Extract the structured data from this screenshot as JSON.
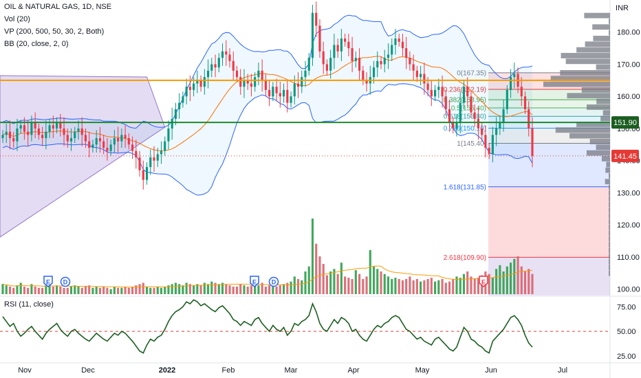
{
  "legend": {
    "symbol": "OIL & NATURAL GAS, 1D, NSE",
    "vol": "Vol (20)",
    "vp": "VP (200, 500, 50, 30, 2, Both)",
    "bb": "BB (20, close, 2, 0)",
    "rsi": "RSI (11, close)"
  },
  "chart_data": {
    "type": "candlestick",
    "currency": "INR",
    "x_ticks": [
      "Nov",
      "Dec",
      "2022",
      "Feb",
      "Mar",
      "Apr",
      "May",
      "Jun",
      "Jul"
    ],
    "y_ticks": [
      100,
      110,
      120,
      130,
      140,
      150,
      160,
      170,
      180
    ],
    "ylim": [
      98,
      190
    ],
    "rsi_ticks": [
      25,
      50,
      75
    ],
    "rsi_ylim": [
      20,
      85
    ],
    "price_labels": [
      {
        "text": "151.90",
        "value": 151.9,
        "color": "#1b5e20"
      },
      {
        "text": "141.45",
        "value": 141.45,
        "color": "#e53935"
      }
    ],
    "horizontal_lines": [
      {
        "value": 165.0,
        "color": "#f59b00"
      },
      {
        "value": 151.9,
        "color": "#1b8a2d"
      }
    ],
    "fib_levels": [
      {
        "label": "0(167.35)",
        "value": 167.35,
        "color": "#787b86"
      },
      {
        "label": "0.236(162.19)",
        "value": 162.19,
        "color": "#e53935"
      },
      {
        "label": "0.382(158.95)",
        "value": 158.95,
        "color": "#43a047"
      },
      {
        "label": "0.5(156.40)",
        "value": 156.4,
        "color": "#4caf50"
      },
      {
        "label": "0.618(153.80)",
        "value": 153.8,
        "color": "#26a69a"
      },
      {
        "label": "0.786(150.10)",
        "value": 150.1,
        "color": "#2196f3"
      },
      {
        "label": "1(145.40)",
        "value": 145.4,
        "color": "#787b86"
      },
      {
        "label": "1.618(131.85)",
        "value": 131.85,
        "color": "#2962ff"
      },
      {
        "label": "2.618(109.90)",
        "value": 109.9,
        "color": "#f23645"
      }
    ],
    "events": [
      {
        "label": "E",
        "month": "Nov"
      },
      {
        "label": "D",
        "month": "Nov"
      },
      {
        "label": "E",
        "month": "Feb"
      },
      {
        "label": "D",
        "month": "Feb"
      },
      {
        "label": "E",
        "month": "May"
      }
    ],
    "close": [
      148,
      149,
      147,
      146,
      150,
      151,
      149,
      148,
      152,
      150,
      148,
      147,
      149,
      151,
      150,
      152,
      150,
      148,
      146,
      147,
      149,
      150,
      148,
      146,
      144,
      145,
      147,
      146,
      144,
      143,
      145,
      147,
      146,
      148,
      147,
      145,
      143,
      141,
      137,
      134,
      138,
      141,
      140,
      142,
      143,
      146,
      150,
      153,
      156,
      158,
      160,
      163,
      162,
      164,
      165,
      163,
      166,
      168,
      170,
      169,
      172,
      174,
      173,
      171,
      168,
      166,
      163,
      165,
      164,
      163,
      166,
      168,
      165,
      162,
      160,
      163,
      161,
      160,
      162,
      158,
      160,
      164,
      163,
      166,
      168,
      172,
      186,
      182,
      174,
      170,
      168,
      172,
      176,
      174,
      178,
      177,
      175,
      171,
      172,
      168,
      165,
      164,
      166,
      169,
      171,
      170,
      172,
      173,
      176,
      178,
      177,
      175,
      172,
      170,
      168,
      166,
      167,
      164,
      162,
      160,
      162,
      163,
      160,
      156,
      152,
      150,
      152,
      158,
      163,
      160,
      155,
      153,
      150,
      148,
      144,
      142,
      148,
      150,
      152,
      156,
      162,
      166,
      167,
      163,
      160,
      156,
      150,
      141.45
    ],
    "volume": [
      8,
      7,
      6,
      5,
      7,
      9,
      6,
      5,
      8,
      6,
      5,
      5,
      7,
      8,
      6,
      7,
      6,
      5,
      5,
      6,
      7,
      6,
      5,
      6,
      7,
      5,
      6,
      5,
      6,
      5,
      4,
      6,
      5,
      5,
      6,
      5,
      6,
      7,
      8,
      9,
      6,
      5,
      5,
      6,
      5,
      6,
      7,
      8,
      9,
      8,
      7,
      9,
      8,
      7,
      8,
      7,
      9,
      8,
      10,
      9,
      8,
      9,
      8,
      7,
      6,
      6,
      8,
      7,
      6,
      7,
      8,
      7,
      9,
      6,
      7,
      8,
      6,
      7,
      8,
      9,
      10,
      14,
      12,
      11,
      18,
      22,
      60,
      40,
      30,
      24,
      15,
      18,
      20,
      16,
      25,
      14,
      13,
      12,
      19,
      16,
      12,
      14,
      35,
      22,
      20,
      18,
      16,
      14,
      12,
      13,
      12,
      11,
      12,
      14,
      11,
      12,
      10,
      11,
      12,
      13,
      10,
      11,
      12,
      9,
      10,
      12,
      14,
      13,
      16,
      18,
      14,
      12,
      13,
      15,
      18,
      16,
      13,
      20,
      23,
      18,
      22,
      25,
      28,
      30,
      22,
      18,
      20,
      16
    ],
    "rsi": [
      65,
      60,
      55,
      58,
      50,
      45,
      48,
      52,
      55,
      50,
      46,
      42,
      48,
      52,
      55,
      58,
      52,
      48,
      45,
      50,
      52,
      48,
      45,
      42,
      40,
      44,
      48,
      45,
      42,
      40,
      44,
      48,
      46,
      50,
      48,
      44,
      40,
      35,
      30,
      28,
      36,
      42,
      40,
      44,
      46,
      52,
      60,
      66,
      70,
      72,
      75,
      80,
      78,
      82,
      80,
      76,
      78,
      75,
      72,
      70,
      74,
      76,
      72,
      68,
      62,
      60,
      56,
      60,
      58,
      56,
      62,
      64,
      58,
      54,
      50,
      56,
      52,
      50,
      54,
      46,
      50,
      58,
      56,
      60,
      62,
      66,
      78,
      70,
      58,
      52,
      50,
      56,
      62,
      58,
      64,
      62,
      58,
      50,
      52,
      46,
      42,
      40,
      46,
      52,
      56,
      54,
      58,
      60,
      64,
      66,
      64,
      58,
      52,
      50,
      46,
      42,
      44,
      40,
      38,
      36,
      42,
      44,
      40,
      36,
      32,
      30,
      34,
      44,
      54,
      50,
      42,
      40,
      36,
      34,
      30,
      28,
      40,
      44,
      48,
      52,
      58,
      64,
      66,
      62,
      56,
      46,
      38,
      34
    ]
  }
}
